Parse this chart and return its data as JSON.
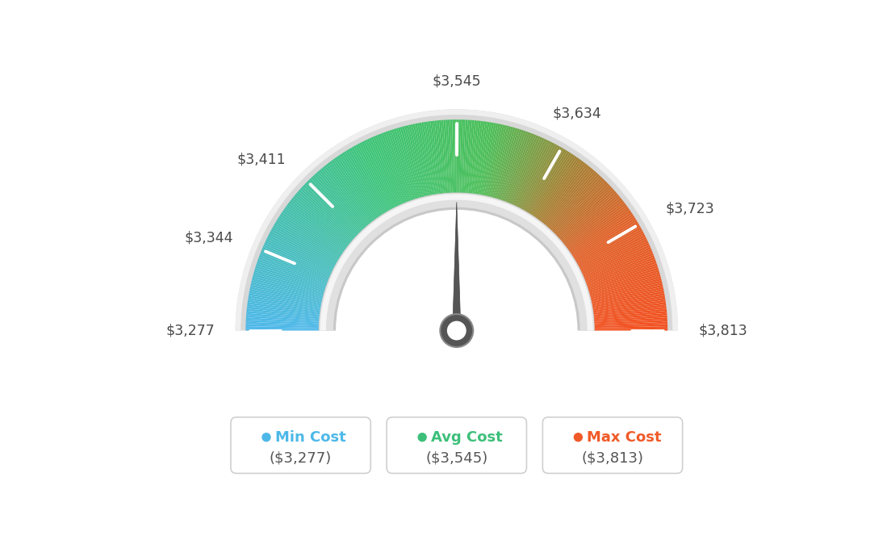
{
  "min_val": 3277,
  "avg_val": 3545,
  "max_val": 3813,
  "tick_labels": [
    "$3,277",
    "$3,344",
    "$3,411",
    "$3,545",
    "$3,634",
    "$3,723",
    "$3,813"
  ],
  "tick_values": [
    3277,
    3344,
    3411,
    3545,
    3634,
    3723,
    3813
  ],
  "legend": [
    {
      "label": "Min Cost",
      "value": "($3,277)",
      "color": "#4db8e8"
    },
    {
      "label": "Avg Cost",
      "value": "($3,545)",
      "color": "#3dbf7a"
    },
    {
      "label": "Max Cost",
      "value": "($3,813)",
      "color": "#f05a28"
    }
  ],
  "background_color": "#ffffff",
  "needle_value": 3545,
  "gauge_colors_left": [
    [
      0.0,
      [
        0.3,
        0.72,
        0.93
      ]
    ],
    [
      0.15,
      [
        0.28,
        0.76,
        0.88
      ]
    ],
    [
      0.3,
      [
        0.26,
        0.8,
        0.72
      ]
    ],
    [
      0.45,
      [
        0.24,
        0.8,
        0.58
      ]
    ],
    [
      0.5,
      [
        0.24,
        0.8,
        0.5
      ]
    ]
  ],
  "gauge_colors_right": [
    [
      0.5,
      [
        0.24,
        0.8,
        0.5
      ]
    ],
    [
      0.6,
      [
        0.5,
        0.72,
        0.35
      ]
    ],
    [
      0.7,
      [
        0.72,
        0.55,
        0.22
      ]
    ],
    [
      0.8,
      [
        0.88,
        0.42,
        0.18
      ]
    ],
    [
      0.9,
      [
        0.94,
        0.36,
        0.16
      ]
    ],
    [
      1.0,
      [
        0.95,
        0.32,
        0.14
      ]
    ]
  ]
}
